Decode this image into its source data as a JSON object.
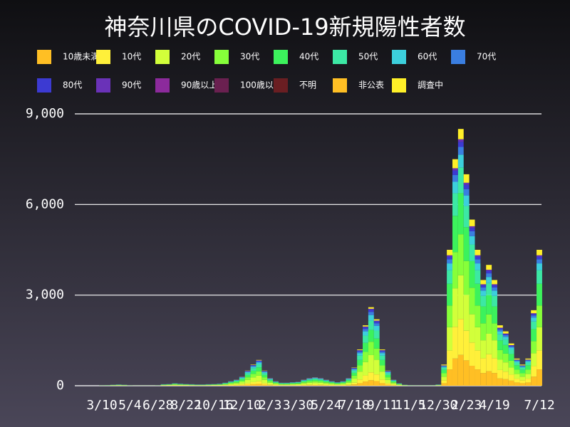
{
  "chart_data": {
    "type": "stacked_bar",
    "title": "神奈川県のCOVID-19新規陽性者数",
    "categories": [
      "3/10",
      null,
      null,
      null,
      null,
      "5/4",
      null,
      null,
      null,
      null,
      "6/28",
      null,
      null,
      null,
      null,
      "8/22",
      null,
      null,
      null,
      null,
      "10/16",
      null,
      null,
      null,
      null,
      "12/10",
      null,
      null,
      null,
      null,
      "2/3",
      null,
      null,
      null,
      null,
      "3/30",
      null,
      null,
      null,
      null,
      "5/24",
      null,
      null,
      null,
      null,
      "7/18",
      null,
      null,
      null,
      null,
      "9/11",
      null,
      null,
      null,
      null,
      "11/5",
      null,
      null,
      null,
      null,
      "12/30",
      null,
      null,
      null,
      null,
      "2/23",
      null,
      null,
      null,
      null,
      "4/19",
      null,
      null,
      null,
      null,
      null,
      null,
      null,
      "7/12"
    ],
    "ylim": [
      0,
      9000
    ],
    "yticks": [
      0,
      {
        "value": 3000,
        "label": "3,000"
      },
      {
        "value": 6000,
        "label": "6,000"
      },
      {
        "value": 9000,
        "label": "9,000"
      }
    ],
    "grid": true,
    "legend": "top",
    "series": [
      {
        "name": "10歳未満",
        "color": "#ffbf24",
        "values": [
          1,
          1,
          2,
          3,
          2,
          1,
          0,
          0,
          0,
          0,
          1,
          4,
          4,
          6,
          5,
          4,
          4,
          3,
          3,
          4,
          4,
          5,
          7,
          11,
          14,
          21,
          35,
          49,
          60,
          35,
          18,
          11,
          7,
          7,
          8,
          9,
          14,
          18,
          20,
          18,
          14,
          11,
          8,
          11,
          18,
          42,
          84,
          140,
          182,
          154,
          84,
          35,
          14,
          6,
          2,
          1,
          1,
          1,
          1,
          1,
          3,
          84,
          540,
          900,
          1020,
          840,
          660,
          540,
          420,
          480,
          420,
          240,
          216,
          168,
          108,
          84,
          108,
          300,
          540
        ]
      },
      {
        "name": "10代",
        "color": "#fff03a",
        "values": [
          1,
          2,
          3,
          4,
          3,
          1,
          1,
          1,
          1,
          1,
          1,
          5,
          6,
          8,
          7,
          6,
          5,
          4,
          4,
          5,
          6,
          7,
          10,
          15,
          20,
          30,
          50,
          70,
          85,
          50,
          25,
          15,
          10,
          10,
          12,
          13,
          20,
          25,
          28,
          25,
          20,
          15,
          12,
          15,
          25,
          60,
          120,
          200,
          260,
          220,
          120,
          50,
          20,
          8,
          3,
          2,
          1,
          1,
          1,
          2,
          4,
          98,
          630,
          1050,
          1190,
          980,
          770,
          630,
          490,
          560,
          490,
          280,
          252,
          196,
          126,
          98,
          126,
          350,
          630
        ]
      },
      {
        "name": "20代",
        "color": "#d2ff3a",
        "values": [
          2,
          4,
          7,
          9,
          7,
          2,
          1,
          1,
          1,
          1,
          2,
          11,
          13,
          18,
          15,
          13,
          11,
          9,
          9,
          11,
          13,
          15,
          22,
          33,
          44,
          66,
          110,
          154,
          187,
          110,
          55,
          33,
          22,
          22,
          26,
          29,
          44,
          55,
          62,
          55,
          44,
          33,
          26,
          33,
          55,
          132,
          264,
          440,
          572,
          484,
          264,
          110,
          44,
          18,
          7,
          3,
          2,
          2,
          2,
          3,
          9,
          119,
          765,
          1275,
          1445,
          1190,
          935,
          765,
          595,
          680,
          595,
          340,
          306,
          238,
          153,
          119,
          153,
          425,
          765
        ]
      },
      {
        "name": "30代",
        "color": "#86ff3a",
        "values": [
          2,
          3,
          5,
          7,
          5,
          2,
          1,
          1,
          1,
          1,
          2,
          9,
          10,
          14,
          12,
          10,
          9,
          7,
          7,
          9,
          10,
          12,
          17,
          26,
          34,
          51,
          85,
          119,
          145,
          85,
          43,
          26,
          17,
          17,
          20,
          22,
          34,
          43,
          48,
          43,
          34,
          26,
          20,
          26,
          43,
          102,
          204,
          340,
          442,
          374,
          204,
          85,
          34,
          14,
          5,
          3,
          2,
          2,
          2,
          3,
          7,
          112,
          720,
          1200,
          1360,
          1120,
          880,
          720,
          560,
          640,
          560,
          320,
          288,
          224,
          144,
          112,
          144,
          400,
          720
        ]
      },
      {
        "name": "40代",
        "color": "#3cf25c",
        "values": [
          2,
          3,
          5,
          6,
          5,
          2,
          1,
          1,
          1,
          1,
          2,
          8,
          9,
          12,
          11,
          9,
          8,
          6,
          6,
          8,
          9,
          11,
          15,
          23,
          30,
          45,
          75,
          105,
          128,
          75,
          38,
          23,
          15,
          15,
          18,
          20,
          30,
          38,
          42,
          38,
          30,
          23,
          18,
          23,
          38,
          90,
          180,
          300,
          390,
          330,
          180,
          75,
          30,
          12,
          5,
          2,
          2,
          2,
          2,
          2,
          6,
          112,
          720,
          1200,
          1360,
          1120,
          880,
          720,
          560,
          640,
          560,
          320,
          288,
          224,
          144,
          112,
          144,
          400,
          720
        ]
      },
      {
        "name": "50代",
        "color": "#3ce8a4",
        "values": [
          1,
          2,
          4,
          5,
          4,
          1,
          1,
          1,
          1,
          1,
          1,
          6,
          7,
          10,
          8,
          7,
          6,
          5,
          5,
          6,
          7,
          8,
          12,
          18,
          24,
          36,
          60,
          84,
          102,
          60,
          30,
          18,
          12,
          12,
          14,
          16,
          24,
          30,
          34,
          30,
          24,
          18,
          14,
          18,
          30,
          72,
          144,
          240,
          312,
          264,
          144,
          60,
          24,
          10,
          4,
          2,
          1,
          1,
          1,
          2,
          5,
          70,
          450,
          750,
          850,
          700,
          550,
          450,
          350,
          400,
          350,
          200,
          180,
          140,
          90,
          70,
          90,
          250,
          450
        ]
      },
      {
        "name": "60代",
        "color": "#3ccfdc",
        "values": [
          1,
          1,
          2,
          3,
          2,
          1,
          0,
          0,
          0,
          0,
          1,
          4,
          4,
          6,
          5,
          4,
          4,
          3,
          3,
          4,
          4,
          5,
          7,
          11,
          14,
          21,
          35,
          49,
          60,
          35,
          18,
          11,
          7,
          7,
          8,
          9,
          14,
          18,
          20,
          18,
          14,
          11,
          8,
          11,
          18,
          42,
          84,
          140,
          182,
          154,
          84,
          35,
          14,
          6,
          2,
          1,
          1,
          1,
          1,
          1,
          3,
          35,
          225,
          375,
          425,
          350,
          275,
          225,
          175,
          200,
          175,
          100,
          90,
          70,
          45,
          35,
          45,
          125,
          225
        ]
      },
      {
        "name": "70代",
        "color": "#3a7ee0",
        "values": [
          0,
          1,
          1,
          2,
          1,
          0,
          0,
          0,
          0,
          0,
          0,
          2,
          2,
          3,
          3,
          2,
          2,
          2,
          2,
          2,
          2,
          3,
          4,
          6,
          8,
          12,
          20,
          28,
          34,
          20,
          10,
          6,
          4,
          4,
          5,
          5,
          8,
          10,
          11,
          10,
          8,
          6,
          5,
          6,
          10,
          24,
          48,
          80,
          104,
          88,
          48,
          20,
          8,
          3,
          1,
          1,
          0,
          0,
          0,
          1,
          2,
          21,
          135,
          225,
          255,
          210,
          165,
          135,
          105,
          120,
          105,
          60,
          54,
          42,
          27,
          21,
          27,
          75,
          135
        ]
      },
      {
        "name": "80代",
        "color": "#3c3ad2",
        "values": [
          0,
          1,
          1,
          1,
          1,
          0,
          0,
          0,
          0,
          0,
          0,
          2,
          2,
          2,
          2,
          2,
          2,
          1,
          1,
          2,
          2,
          2,
          3,
          5,
          6,
          9,
          15,
          21,
          26,
          15,
          8,
          5,
          3,
          3,
          4,
          4,
          6,
          8,
          8,
          8,
          6,
          5,
          4,
          5,
          8,
          18,
          36,
          60,
          78,
          66,
          36,
          15,
          6,
          2,
          1,
          0,
          0,
          0,
          0,
          0,
          1,
          14,
          90,
          150,
          170,
          140,
          110,
          90,
          70,
          80,
          70,
          40,
          36,
          28,
          18,
          14,
          18,
          50,
          90
        ]
      },
      {
        "name": "90代",
        "color": "#6a32b8",
        "values": [
          0,
          0,
          0,
          0,
          0,
          0,
          0,
          0,
          0,
          0,
          0,
          1,
          1,
          1,
          1,
          1,
          1,
          0,
          0,
          1,
          1,
          1,
          1,
          2,
          2,
          3,
          5,
          7,
          9,
          5,
          3,
          2,
          1,
          1,
          1,
          1,
          2,
          3,
          3,
          3,
          2,
          2,
          1,
          2,
          3,
          6,
          12,
          20,
          26,
          22,
          12,
          5,
          2,
          1,
          0,
          0,
          0,
          0,
          0,
          0,
          0,
          7,
          45,
          75,
          85,
          70,
          55,
          45,
          35,
          40,
          35,
          20,
          18,
          14,
          9,
          7,
          9,
          25,
          45
        ]
      },
      {
        "name": "90歳以上",
        "color": "#8c2a9c",
        "values": [
          0,
          0,
          0,
          0,
          0,
          0,
          0,
          0,
          0,
          0,
          0,
          0,
          0,
          0,
          0,
          0,
          0,
          0,
          0,
          0,
          0,
          0,
          0,
          0,
          0,
          0,
          0,
          0,
          0,
          0,
          0,
          0,
          0,
          0,
          0,
          0,
          0,
          0,
          0,
          0,
          0,
          0,
          0,
          0,
          0,
          0,
          0,
          0,
          0,
          0,
          0,
          0,
          0,
          0,
          0,
          0,
          0,
          0,
          0,
          0,
          0,
          0,
          0,
          0,
          0,
          0,
          0,
          0,
          0,
          0,
          0,
          0,
          0,
          0,
          0,
          0,
          0,
          0,
          0
        ]
      },
      {
        "name": "100歳以上",
        "color": "#6a2050",
        "values": [
          0,
          0,
          0,
          0,
          0,
          0,
          0,
          0,
          0,
          0,
          0,
          0,
          0,
          0,
          0,
          0,
          0,
          0,
          0,
          0,
          0,
          0,
          0,
          0,
          0,
          0,
          0,
          0,
          0,
          0,
          0,
          0,
          0,
          0,
          0,
          0,
          0,
          0,
          0,
          0,
          0,
          0,
          0,
          0,
          0,
          0,
          0,
          0,
          0,
          0,
          0,
          0,
          0,
          0,
          0,
          0,
          0,
          0,
          0,
          0,
          0,
          0,
          0,
          0,
          0,
          0,
          0,
          0,
          0,
          0,
          0,
          0,
          0,
          0,
          0,
          0,
          0,
          0,
          0
        ]
      },
      {
        "name": "不明",
        "color": "#6a1e22",
        "values": [
          0,
          0,
          0,
          0,
          0,
          0,
          0,
          0,
          0,
          0,
          0,
          0,
          0,
          0,
          0,
          0,
          0,
          0,
          0,
          0,
          0,
          0,
          0,
          0,
          0,
          0,
          0,
          0,
          0,
          0,
          0,
          0,
          0,
          0,
          0,
          0,
          0,
          0,
          0,
          0,
          0,
          0,
          0,
          0,
          0,
          0,
          0,
          0,
          0,
          0,
          0,
          0,
          0,
          0,
          0,
          0,
          0,
          0,
          0,
          0,
          0,
          0,
          0,
          0,
          0,
          0,
          0,
          0,
          0,
          0,
          0,
          0,
          0,
          0,
          0,
          0,
          0,
          0,
          0
        ]
      },
      {
        "name": "非公表",
        "color": "#ffbf24",
        "values": [
          0,
          0,
          0,
          0,
          0,
          0,
          0,
          0,
          0,
          0,
          0,
          0,
          0,
          0,
          0,
          0,
          0,
          0,
          0,
          0,
          0,
          0,
          0,
          0,
          0,
          0,
          0,
          0,
          0,
          0,
          0,
          0,
          0,
          0,
          0,
          0,
          0,
          0,
          0,
          0,
          0,
          0,
          0,
          0,
          0,
          0,
          0,
          0,
          0,
          0,
          0,
          0,
          0,
          0,
          0,
          0,
          0,
          0,
          0,
          0,
          0,
          0,
          0,
          0,
          0,
          0,
          0,
          0,
          0,
          0,
          0,
          0,
          0,
          0,
          0,
          0,
          0,
          0,
          0
        ]
      },
      {
        "name": "調査中",
        "color": "#fff028",
        "values": [
          0,
          0,
          1,
          1,
          1,
          0,
          0,
          0,
          0,
          0,
          0,
          1,
          1,
          2,
          1,
          1,
          1,
          1,
          1,
          1,
          1,
          1,
          2,
          3,
          4,
          6,
          10,
          14,
          17,
          10,
          5,
          3,
          2,
          2,
          2,
          3,
          4,
          5,
          6,
          5,
          4,
          3,
          2,
          3,
          5,
          12,
          24,
          40,
          52,
          44,
          24,
          10,
          4,
          2,
          1,
          0,
          0,
          0,
          0,
          0,
          1,
          28,
          180,
          300,
          340,
          280,
          220,
          180,
          140,
          160,
          140,
          80,
          72,
          56,
          36,
          28,
          36,
          100,
          180
        ]
      }
    ]
  }
}
